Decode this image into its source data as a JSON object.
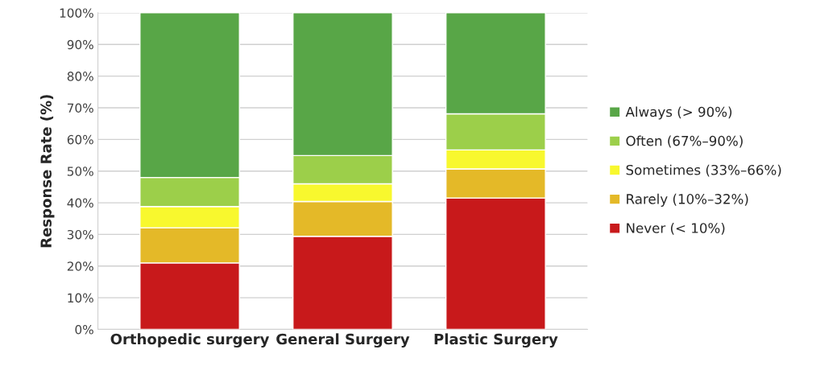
{
  "chart_data": {
    "type": "bar",
    "stacked": true,
    "ylabel": "Response Rate (%)",
    "categories": [
      "Orthopedic surgery",
      "General Surgery",
      "Plastic Surgery"
    ],
    "series": [
      {
        "name": "Never (< 10%)",
        "color": "#c8191b",
        "values": [
          21.0,
          29.4,
          41.5
        ]
      },
      {
        "name": "Rarely (10%–32%)",
        "color": "#e4b928",
        "values": [
          11.1,
          11.0,
          9.2
        ]
      },
      {
        "name": "Sometimes (33%–66%)",
        "color": "#f8f82e",
        "values": [
          6.7,
          5.6,
          6.0
        ]
      },
      {
        "name": "Often (67%–90%)",
        "color": "#9ccf4a",
        "values": [
          9.2,
          8.9,
          11.4
        ]
      },
      {
        "name": "Always (> 90%)",
        "color": "#58a647",
        "values": [
          52.0,
          45.1,
          31.9
        ]
      }
    ],
    "ylim": [
      0,
      100
    ],
    "yticks": [
      {
        "value": 0,
        "label": "0%"
      },
      {
        "value": 10,
        "label": "10%"
      },
      {
        "value": 20,
        "label": "20%"
      },
      {
        "value": 30,
        "label": "30%"
      },
      {
        "value": 40,
        "label": "40%"
      },
      {
        "value": 50,
        "label": "50%"
      },
      {
        "value": 60,
        "label": "60%"
      },
      {
        "value": 70,
        "label": "70%"
      },
      {
        "value": 80,
        "label": "80%"
      },
      {
        "value": 90,
        "label": "90%"
      },
      {
        "value": 100,
        "label": "100%"
      }
    ],
    "grid": "y",
    "legend": "right"
  }
}
